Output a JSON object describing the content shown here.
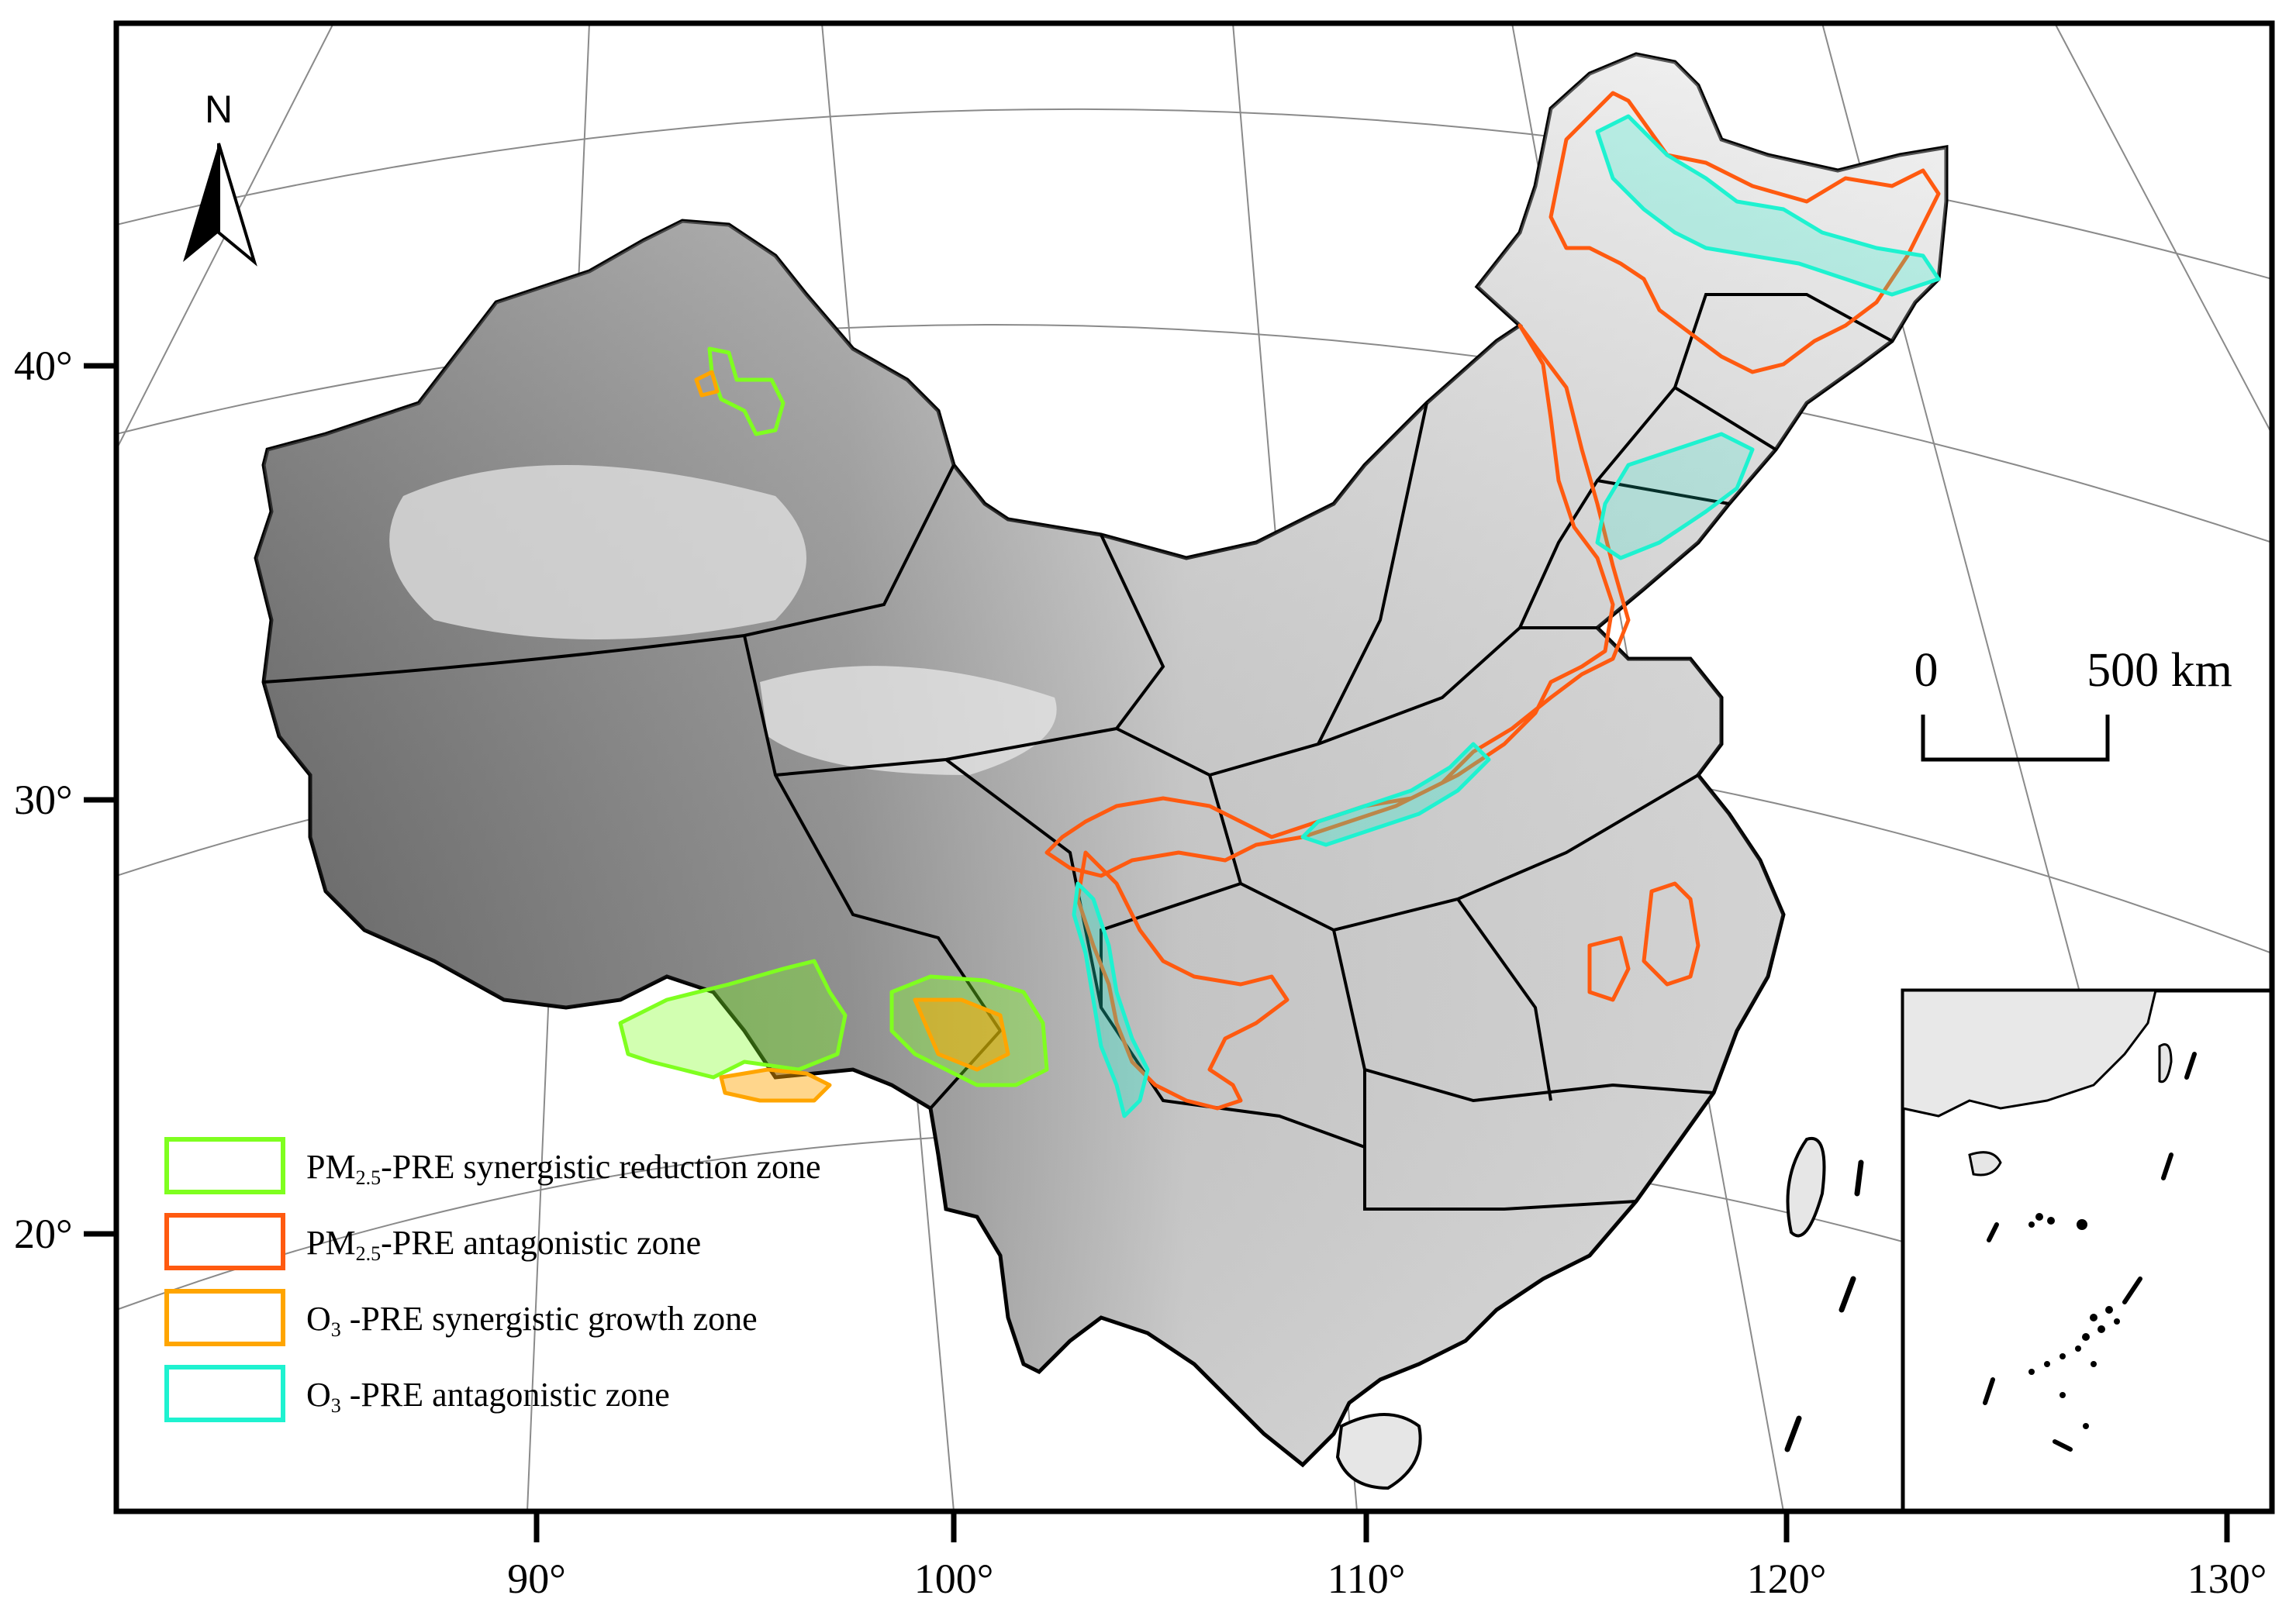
{
  "colors": {
    "pm25_synergistic_reduction": "#7fff1f",
    "pm25_antagonistic": "#ff5a10",
    "o3_synergistic_growth": "#ffa500",
    "o3_antagonistic": "#1ef2d0",
    "frame": "#000000",
    "graticule": "#8a8a8a",
    "land_light": "#ececec",
    "land_dark": "#5a5a5a"
  },
  "axes": {
    "latitude_ticks": [
      "40°",
      "30°",
      "20°"
    ],
    "longitude_ticks": [
      "90°",
      "100°",
      "110°",
      "120°",
      "130°"
    ]
  },
  "north_arrow": {
    "label": "N",
    "icon": "north-arrow-icon"
  },
  "scale_bar": {
    "start_label": "0",
    "end_label": "500 km"
  },
  "legend": [
    {
      "prefix": "PM",
      "sub": "2.5",
      "suffix": "-PRE synergistic reduction zone",
      "color_key": "pm25_synergistic_reduction"
    },
    {
      "prefix": "PM",
      "sub": "2.5",
      "suffix": "-PRE antagonistic zone",
      "color_key": "pm25_antagonistic"
    },
    {
      "prefix": "O",
      "sub": "3",
      "suffix": " -PRE synergistic growth zone",
      "color_key": "o3_synergistic_growth"
    },
    {
      "prefix": "O",
      "sub": "3",
      "suffix": " -PRE antagonistic zone",
      "color_key": "o3_antagonistic"
    }
  ]
}
